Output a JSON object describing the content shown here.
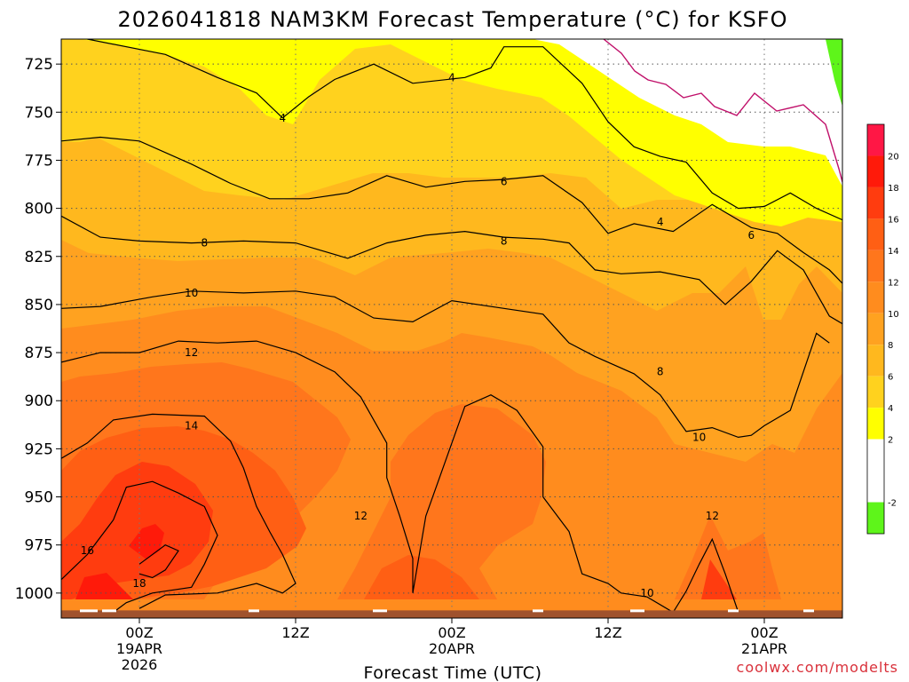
{
  "chart_data": {
    "type": "contour",
    "title": "2026041818 NAM3KM Forecast Temperature (°C) for KSFO",
    "xlabel": "Forecast Time (UTC)",
    "ylabel": "",
    "credit": "coolwx.com/modelts",
    "credit_color": "#d9303a",
    "forecast_hours_range": [
      -6,
      54
    ],
    "pressure_range_hpa": [
      712,
      1013
    ],
    "ground_pressure_hpa": 1009,
    "y_ticks": [
      725,
      750,
      775,
      800,
      825,
      850,
      875,
      900,
      925,
      950,
      975,
      1000
    ],
    "x_ticks": [
      {
        "hour": 0,
        "lines": [
          "00Z",
          "19APR",
          "2026"
        ]
      },
      {
        "hour": 12,
        "lines": [
          "12Z"
        ]
      },
      {
        "hour": 24,
        "lines": [
          "00Z",
          "20APR"
        ]
      },
      {
        "hour": 36,
        "lines": [
          "12Z"
        ]
      },
      {
        "hour": 48,
        "lines": [
          "00Z",
          "21APR"
        ]
      }
    ],
    "colorbar": {
      "ticks": [
        "20",
        "18",
        "16",
        "14",
        "12",
        "10",
        "8",
        "6",
        "4",
        "2",
        "-2"
      ],
      "bands": [
        {
          "lo": 20,
          "hi": 22,
          "color": "#ff1745"
        },
        {
          "lo": 18,
          "hi": 20,
          "color": "#ff1a0a"
        },
        {
          "lo": 16,
          "hi": 18,
          "color": "#ff3c0f"
        },
        {
          "lo": 14,
          "hi": 16,
          "color": "#ff5f14"
        },
        {
          "lo": 12,
          "hi": 14,
          "color": "#ff761c"
        },
        {
          "lo": 10,
          "hi": 12,
          "color": "#ff8c1e"
        },
        {
          "lo": 8,
          "hi": 10,
          "color": "#ffa220"
        },
        {
          "lo": 6,
          "hi": 8,
          "color": "#ffb81e"
        },
        {
          "lo": 4,
          "hi": 6,
          "color": "#ffd21e"
        },
        {
          "lo": 2,
          "hi": 4,
          "color": "#ffff00"
        },
        {
          "lo": -2,
          "hi": 2,
          "color": "#ffffff"
        },
        {
          "lo": -4,
          "hi": -2,
          "color": "#5ef51a"
        }
      ]
    },
    "isotherms": [
      {
        "value": 4,
        "points": [
          [
            -4,
            712
          ],
          [
            2,
            720
          ],
          [
            6,
            732
          ],
          [
            9,
            740
          ],
          [
            11,
            753
          ],
          [
            13,
            742
          ],
          [
            15,
            733
          ],
          [
            18,
            725
          ],
          [
            21,
            735
          ],
          [
            25,
            732
          ],
          [
            27,
            727
          ],
          [
            28,
            716
          ],
          [
            31,
            716
          ],
          [
            34,
            735
          ],
          [
            36,
            755
          ],
          [
            38,
            768
          ],
          [
            40,
            773
          ],
          [
            42,
            776
          ],
          [
            44,
            792
          ],
          [
            46,
            800
          ],
          [
            48,
            799
          ],
          [
            50,
            792
          ],
          [
            52,
            800
          ],
          [
            54,
            806
          ]
        ],
        "labels": [
          [
            11,
            753,
            "4"
          ],
          [
            24,
            732,
            "4"
          ],
          [
            40,
            807,
            "4"
          ]
        ]
      },
      {
        "value": 6,
        "points": [
          [
            -6,
            765
          ],
          [
            -3,
            763
          ],
          [
            0,
            765
          ],
          [
            4,
            777
          ],
          [
            7,
            787
          ],
          [
            10,
            795
          ],
          [
            13,
            795
          ],
          [
            16,
            792
          ],
          [
            19,
            783
          ],
          [
            22,
            789
          ],
          [
            25,
            786
          ],
          [
            28,
            785
          ],
          [
            31,
            783
          ],
          [
            34,
            797
          ],
          [
            36,
            813
          ],
          [
            38,
            808
          ],
          [
            41,
            812
          ],
          [
            44,
            798
          ],
          [
            47,
            810
          ],
          [
            49,
            813
          ],
          [
            51,
            823
          ],
          [
            53,
            832
          ],
          [
            54,
            839
          ]
        ],
        "labels": [
          [
            28,
            786,
            "6"
          ],
          [
            47,
            814,
            "6"
          ]
        ]
      },
      {
        "value": 8,
        "points": [
          [
            -6,
            804
          ],
          [
            -3,
            815
          ],
          [
            0,
            817
          ],
          [
            4,
            818
          ],
          [
            8,
            817
          ],
          [
            12,
            818
          ],
          [
            16,
            826
          ],
          [
            19,
            818
          ],
          [
            22,
            814
          ],
          [
            25,
            812
          ],
          [
            28,
            815
          ],
          [
            31,
            816
          ],
          [
            33,
            818
          ],
          [
            35,
            832
          ],
          [
            37,
            834
          ],
          [
            40,
            833
          ],
          [
            43,
            837
          ],
          [
            45,
            850
          ],
          [
            47,
            838
          ],
          [
            49,
            822
          ],
          [
            51,
            832
          ],
          [
            53,
            856
          ],
          [
            54,
            860
          ]
        ],
        "labels": [
          [
            5,
            818,
            "8"
          ],
          [
            28,
            817,
            "8"
          ],
          [
            40,
            885,
            "8"
          ]
        ]
      },
      {
        "value": 10,
        "points": [
          [
            -6,
            852
          ],
          [
            -3,
            851
          ],
          [
            1,
            846
          ],
          [
            4,
            843
          ],
          [
            8,
            844
          ],
          [
            12,
            843
          ],
          [
            15,
            846
          ],
          [
            18,
            857
          ],
          [
            21,
            859
          ],
          [
            24,
            848
          ],
          [
            28,
            852
          ],
          [
            31,
            855
          ],
          [
            33,
            870
          ],
          [
            35,
            877
          ],
          [
            38,
            886
          ],
          [
            40,
            897
          ],
          [
            42,
            916
          ],
          [
            44,
            914
          ],
          [
            46,
            919
          ],
          [
            47,
            918
          ],
          [
            48,
            913
          ],
          [
            50,
            905
          ],
          [
            52,
            865
          ],
          [
            53,
            870
          ]
        ],
        "labels": [
          [
            4,
            844,
            "10"
          ],
          [
            43,
            919,
            "10"
          ],
          [
            39,
            1000,
            "10"
          ]
        ]
      },
      {
        "value": 12,
        "points": [
          [
            -6,
            880
          ],
          [
            -3,
            875
          ],
          [
            0,
            875
          ],
          [
            3,
            869
          ],
          [
            6,
            870
          ],
          [
            9,
            869
          ],
          [
            12,
            875
          ],
          [
            15,
            885
          ],
          [
            17,
            898
          ],
          [
            18,
            910
          ],
          [
            19,
            922
          ],
          [
            19,
            940
          ],
          [
            20,
            960
          ],
          [
            21,
            982
          ],
          [
            21,
            1000
          ],
          [
            22,
            960
          ],
          [
            25,
            903
          ],
          [
            27,
            897
          ],
          [
            29,
            905
          ],
          [
            31,
            924
          ],
          [
            31,
            950
          ],
          [
            33,
            968
          ],
          [
            34,
            990
          ],
          [
            36,
            995
          ],
          [
            37,
            1000
          ],
          [
            39,
            1002
          ],
          [
            41,
            1010
          ],
          [
            42,
            999
          ],
          [
            43,
            985
          ],
          [
            44,
            972
          ],
          [
            45,
            990
          ],
          [
            46,
            1010
          ]
        ],
        "labels": [
          [
            4,
            875,
            "12"
          ],
          [
            17,
            960,
            "12"
          ],
          [
            44,
            960,
            "12"
          ]
        ]
      },
      {
        "value": 14,
        "points": [
          [
            -6,
            930
          ],
          [
            -4,
            922
          ],
          [
            -2,
            910
          ],
          [
            1,
            907
          ],
          [
            5,
            908
          ],
          [
            7,
            921
          ],
          [
            8,
            935
          ],
          [
            9,
            955
          ],
          [
            10,
            968
          ],
          [
            11,
            980
          ],
          [
            12,
            995
          ],
          [
            11,
            1000
          ],
          [
            9,
            995
          ],
          [
            6,
            1000
          ],
          [
            2,
            1001
          ],
          [
            0,
            1008
          ]
        ],
        "labels": [
          [
            4,
            913,
            "14"
          ]
        ]
      },
      {
        "value": 16,
        "points": [
          [
            -6,
            993
          ],
          [
            -4,
            980
          ],
          [
            -2,
            962
          ],
          [
            -1,
            945
          ],
          [
            1,
            942
          ],
          [
            3,
            948
          ],
          [
            5,
            955
          ],
          [
            6,
            970
          ],
          [
            5,
            985
          ],
          [
            4,
            997
          ],
          [
            1,
            1000
          ],
          [
            -1,
            1005
          ],
          [
            -2,
            1010
          ]
        ],
        "labels": [
          [
            -4,
            978,
            "16"
          ]
        ]
      },
      {
        "value": 18,
        "points": [
          [
            0,
            985
          ],
          [
            2,
            975
          ],
          [
            3,
            978
          ],
          [
            2,
            988
          ],
          [
            1,
            992
          ],
          [
            0,
            990
          ]
        ],
        "labels": [
          [
            0,
            995,
            "18"
          ]
        ]
      }
    ]
  }
}
